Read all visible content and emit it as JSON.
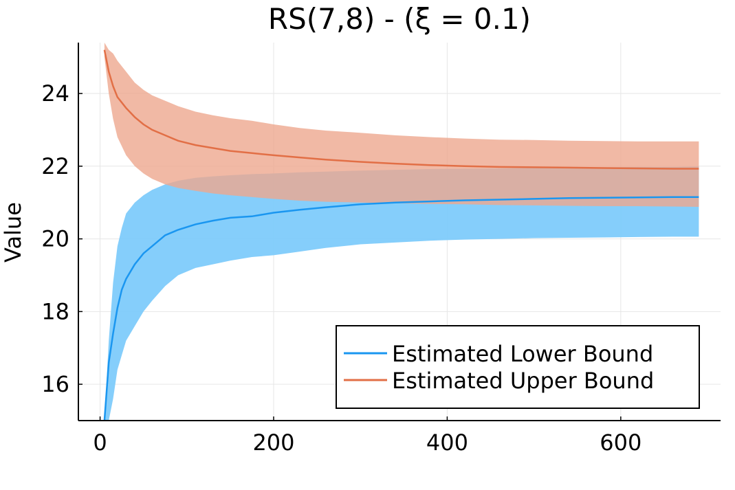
{
  "chart_data": {
    "type": "line",
    "title": "RS(7,8) - (ξ = 0.1)",
    "xlabel": "",
    "ylabel": "Value",
    "xlim": [
      -25,
      715
    ],
    "ylim": [
      15,
      25.4
    ],
    "x_ticks": [
      0,
      200,
      400,
      600
    ],
    "y_ticks": [
      16,
      18,
      20,
      22,
      24
    ],
    "grid": true,
    "legend_position": "bottom-right",
    "series": [
      {
        "name": "Estimated Lower Bound",
        "color": "#1a96f0",
        "band_color": "#7ecbfb",
        "x": [
          5,
          10,
          15,
          20,
          25,
          30,
          40,
          50,
          60,
          75,
          90,
          110,
          130,
          150,
          175,
          200,
          230,
          260,
          300,
          340,
          380,
          420,
          460,
          500,
          540,
          580,
          620,
          660,
          690
        ],
        "y": [
          15.0,
          16.6,
          17.4,
          18.1,
          18.6,
          18.9,
          19.3,
          19.6,
          19.8,
          20.1,
          20.25,
          20.4,
          20.5,
          20.58,
          20.62,
          20.72,
          20.8,
          20.87,
          20.95,
          21.0,
          21.03,
          21.06,
          21.08,
          21.1,
          21.12,
          21.13,
          21.14,
          21.15,
          21.15
        ],
        "lower": [
          15.0,
          15.0,
          15.6,
          16.4,
          16.8,
          17.2,
          17.6,
          18.0,
          18.3,
          18.7,
          19.0,
          19.2,
          19.3,
          19.4,
          19.5,
          19.55,
          19.65,
          19.75,
          19.85,
          19.9,
          19.95,
          19.98,
          20.0,
          20.02,
          20.03,
          20.04,
          20.05,
          20.06,
          20.06
        ],
        "upper": [
          15.0,
          17.2,
          18.8,
          19.8,
          20.3,
          20.7,
          21.0,
          21.2,
          21.35,
          21.5,
          21.6,
          21.68,
          21.72,
          21.75,
          21.78,
          21.8,
          21.83,
          21.85,
          21.88,
          21.9,
          21.92,
          21.93,
          21.94,
          21.95,
          21.96,
          21.97,
          21.98,
          21.98,
          21.99
        ]
      },
      {
        "name": "Estimated Upper Bound",
        "color": "#e26f46",
        "band_color": "#eea88e",
        "x": [
          5,
          10,
          15,
          20,
          30,
          40,
          50,
          60,
          75,
          90,
          110,
          130,
          150,
          175,
          200,
          230,
          260,
          300,
          340,
          380,
          420,
          460,
          500,
          540,
          580,
          620,
          660,
          690
        ],
        "y": [
          25.2,
          24.6,
          24.2,
          23.9,
          23.6,
          23.35,
          23.15,
          23.0,
          22.85,
          22.7,
          22.58,
          22.5,
          22.42,
          22.36,
          22.3,
          22.24,
          22.18,
          22.12,
          22.07,
          22.03,
          22.0,
          21.98,
          21.97,
          21.96,
          21.95,
          21.94,
          21.93,
          21.93
        ],
        "lower": [
          25.0,
          24.0,
          23.3,
          22.8,
          22.3,
          22.0,
          21.8,
          21.65,
          21.5,
          21.4,
          21.32,
          21.25,
          21.2,
          21.15,
          21.1,
          21.05,
          21.02,
          21.0,
          20.98,
          20.96,
          20.95,
          20.93,
          20.92,
          20.91,
          20.9,
          20.9,
          20.89,
          20.88
        ],
        "upper": [
          25.4,
          25.2,
          25.1,
          24.9,
          24.6,
          24.3,
          24.1,
          23.95,
          23.8,
          23.65,
          23.5,
          23.4,
          23.32,
          23.25,
          23.15,
          23.05,
          22.98,
          22.92,
          22.85,
          22.8,
          22.76,
          22.73,
          22.72,
          22.7,
          22.69,
          22.68,
          22.68,
          22.68
        ]
      }
    ]
  }
}
